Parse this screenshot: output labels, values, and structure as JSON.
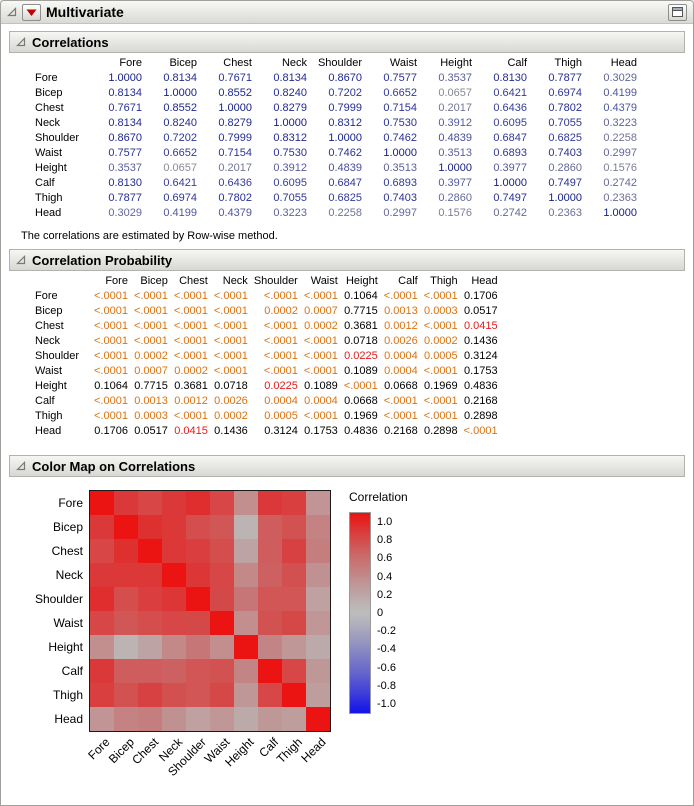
{
  "window": {
    "title": "Multivariate"
  },
  "sections": [
    {
      "id": "correlations",
      "title": "Correlations"
    },
    {
      "id": "probability",
      "title": "Correlation Probability"
    },
    {
      "id": "colormap",
      "title": "Color Map on Correlations"
    }
  ],
  "note": "The correlations are estimated by Row-wise method.",
  "variables": [
    "Fore",
    "Bicep",
    "Chest",
    "Neck",
    "Shoulder",
    "Waist",
    "Height",
    "Calf",
    "Thigh",
    "Head"
  ],
  "colors": {
    "p_significant_lt_01": "#d97311",
    "p_significant_lt_05": "#e31b1b",
    "p_not_significant": "#000000",
    "correlation_max_blue": "#15208f",
    "correlation_zero_gray": "#949494",
    "heat_positive_max": "#ec1313",
    "heat_negative_max": "#1313ec",
    "heat_zero_gray": "#bdbdbd"
  },
  "chart_data": [
    {
      "type": "table",
      "title": "Correlations",
      "row_labels": [
        "Fore",
        "Bicep",
        "Chest",
        "Neck",
        "Shoulder",
        "Waist",
        "Height",
        "Calf",
        "Thigh",
        "Head"
      ],
      "col_labels": [
        "Fore",
        "Bicep",
        "Chest",
        "Neck",
        "Shoulder",
        "Waist",
        "Height",
        "Calf",
        "Thigh",
        "Head"
      ],
      "values": [
        [
          "1.0000",
          "0.8134",
          "0.7671",
          "0.8134",
          "0.8670",
          "0.7577",
          "0.3537",
          "0.8130",
          "0.7877",
          "0.3029"
        ],
        [
          "0.8134",
          "1.0000",
          "0.8552",
          "0.8240",
          "0.7202",
          "0.6652",
          "0.0657",
          "0.6421",
          "0.6974",
          "0.4199"
        ],
        [
          "0.7671",
          "0.8552",
          "1.0000",
          "0.8279",
          "0.7999",
          "0.7154",
          "0.2017",
          "0.6436",
          "0.7802",
          "0.4379"
        ],
        [
          "0.8134",
          "0.8240",
          "0.8279",
          "1.0000",
          "0.8312",
          "0.7530",
          "0.3912",
          "0.6095",
          "0.7055",
          "0.3223"
        ],
        [
          "0.8670",
          "0.7202",
          "0.7999",
          "0.8312",
          "1.0000",
          "0.7462",
          "0.4839",
          "0.6847",
          "0.6825",
          "0.2258"
        ],
        [
          "0.7577",
          "0.6652",
          "0.7154",
          "0.7530",
          "0.7462",
          "1.0000",
          "0.3513",
          "0.6893",
          "0.7403",
          "0.2997"
        ],
        [
          "0.3537",
          "0.0657",
          "0.2017",
          "0.3912",
          "0.4839",
          "0.3513",
          "1.0000",
          "0.3977",
          "0.2860",
          "0.1576"
        ],
        [
          "0.8130",
          "0.6421",
          "0.6436",
          "0.6095",
          "0.6847",
          "0.6893",
          "0.3977",
          "1.0000",
          "0.7497",
          "0.2742"
        ],
        [
          "0.7877",
          "0.6974",
          "0.7802",
          "0.7055",
          "0.6825",
          "0.7403",
          "0.2860",
          "0.7497",
          "1.0000",
          "0.2363"
        ],
        [
          "0.3029",
          "0.4199",
          "0.4379",
          "0.3223",
          "0.2258",
          "0.2997",
          "0.1576",
          "0.2742",
          "0.2363",
          "1.0000"
        ]
      ]
    },
    {
      "type": "table",
      "title": "Correlation Probability",
      "row_labels": [
        "Fore",
        "Bicep",
        "Chest",
        "Neck",
        "Shoulder",
        "Waist",
        "Height",
        "Calf",
        "Thigh",
        "Head"
      ],
      "col_labels": [
        "Fore",
        "Bicep",
        "Chest",
        "Neck",
        "Shoulder",
        "Waist",
        "Height",
        "Calf",
        "Thigh",
        "Head"
      ],
      "values": [
        [
          "<.0001",
          "<.0001",
          "<.0001",
          "<.0001",
          "<.0001",
          "<.0001",
          "0.1064",
          "<.0001",
          "<.0001",
          "0.1706"
        ],
        [
          "<.0001",
          "<.0001",
          "<.0001",
          "<.0001",
          "0.0002",
          "0.0007",
          "0.7715",
          "0.0013",
          "0.0003",
          "0.0517"
        ],
        [
          "<.0001",
          "<.0001",
          "<.0001",
          "<.0001",
          "<.0001",
          "0.0002",
          "0.3681",
          "0.0012",
          "<.0001",
          "0.0415"
        ],
        [
          "<.0001",
          "<.0001",
          "<.0001",
          "<.0001",
          "<.0001",
          "<.0001",
          "0.0718",
          "0.0026",
          "0.0002",
          "0.1436"
        ],
        [
          "<.0001",
          "0.0002",
          "<.0001",
          "<.0001",
          "<.0001",
          "<.0001",
          "0.0225",
          "0.0004",
          "0.0005",
          "0.3124"
        ],
        [
          "<.0001",
          "0.0007",
          "0.0002",
          "<.0001",
          "<.0001",
          "<.0001",
          "0.1089",
          "0.0004",
          "<.0001",
          "0.1753"
        ],
        [
          "0.1064",
          "0.7715",
          "0.3681",
          "0.0718",
          "0.0225",
          "0.1089",
          "<.0001",
          "0.0668",
          "0.1969",
          "0.4836"
        ],
        [
          "<.0001",
          "0.0013",
          "0.0012",
          "0.0026",
          "0.0004",
          "0.0004",
          "0.0668",
          "<.0001",
          "<.0001",
          "0.2168"
        ],
        [
          "<.0001",
          "0.0003",
          "<.0001",
          "0.0002",
          "0.0005",
          "<.0001",
          "0.1969",
          "<.0001",
          "<.0001",
          "0.2898"
        ],
        [
          "0.1706",
          "0.0517",
          "0.0415",
          "0.1436",
          "0.3124",
          "0.1753",
          "0.4836",
          "0.2168",
          "0.2898",
          "<.0001"
        ]
      ]
    },
    {
      "type": "heatmap",
      "title": "Color Map on Correlations",
      "x_labels": [
        "Fore",
        "Bicep",
        "Chest",
        "Neck",
        "Shoulder",
        "Waist",
        "Height",
        "Calf",
        "Thigh",
        "Head"
      ],
      "y_labels": [
        "Fore",
        "Bicep",
        "Chest",
        "Neck",
        "Shoulder",
        "Waist",
        "Height",
        "Calf",
        "Thigh",
        "Head"
      ],
      "values": [
        [
          1.0,
          0.8134,
          0.7671,
          0.8134,
          0.867,
          0.7577,
          0.3537,
          0.813,
          0.7877,
          0.3029
        ],
        [
          0.8134,
          1.0,
          0.8552,
          0.824,
          0.7202,
          0.6652,
          0.0657,
          0.6421,
          0.6974,
          0.4199
        ],
        [
          0.7671,
          0.8552,
          1.0,
          0.8279,
          0.7999,
          0.7154,
          0.2017,
          0.6436,
          0.7802,
          0.4379
        ],
        [
          0.8134,
          0.824,
          0.8279,
          1.0,
          0.8312,
          0.753,
          0.3912,
          0.6095,
          0.7055,
          0.3223
        ],
        [
          0.867,
          0.7202,
          0.7999,
          0.8312,
          1.0,
          0.7462,
          0.4839,
          0.6847,
          0.6825,
          0.2258
        ],
        [
          0.7577,
          0.6652,
          0.7154,
          0.753,
          0.7462,
          1.0,
          0.3513,
          0.6893,
          0.7403,
          0.2997
        ],
        [
          0.3537,
          0.0657,
          0.2017,
          0.3912,
          0.4839,
          0.3513,
          1.0,
          0.3977,
          0.286,
          0.1576
        ],
        [
          0.813,
          0.6421,
          0.6436,
          0.6095,
          0.6847,
          0.6893,
          0.3977,
          1.0,
          0.7497,
          0.2742
        ],
        [
          0.7877,
          0.6974,
          0.7802,
          0.7055,
          0.6825,
          0.7403,
          0.286,
          0.7497,
          1.0,
          0.2363
        ],
        [
          0.3029,
          0.4199,
          0.4379,
          0.3223,
          0.2258,
          0.2997,
          0.1576,
          0.2742,
          0.2363,
          1.0
        ]
      ],
      "legend_title": "Correlation",
      "legend_ticks": [
        "1.0",
        "0.8",
        "0.6",
        "0.4",
        "0.2",
        "0",
        "-0.2",
        "-0.4",
        "-0.6",
        "-0.8",
        "-1.0"
      ],
      "color_scale": {
        "min": -1,
        "max": 1,
        "negative": "blue",
        "zero": "gray",
        "positive": "red"
      }
    }
  ]
}
